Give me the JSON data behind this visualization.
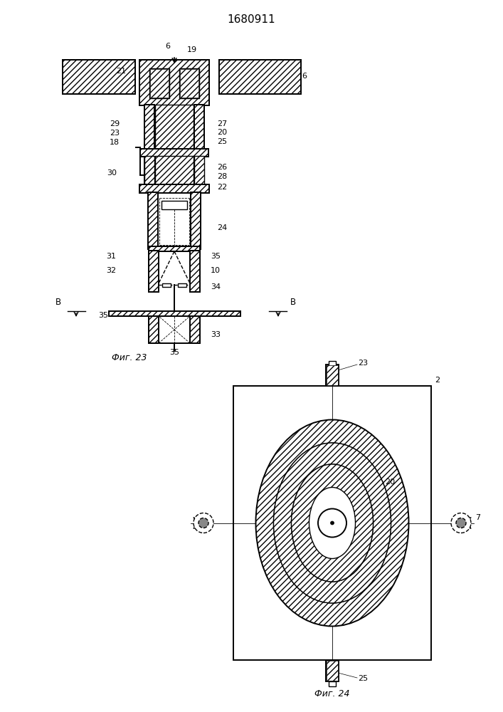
{
  "title": "1680911",
  "fig23_label": "Фиг. 23",
  "fig24_label": "Фиг. 24",
  "background_color": "#ffffff",
  "line_color": "#000000",
  "hatch_color": "#000000",
  "title_fontsize": 11,
  "label_fontsize": 8.5,
  "annotation_fontsize": 8
}
